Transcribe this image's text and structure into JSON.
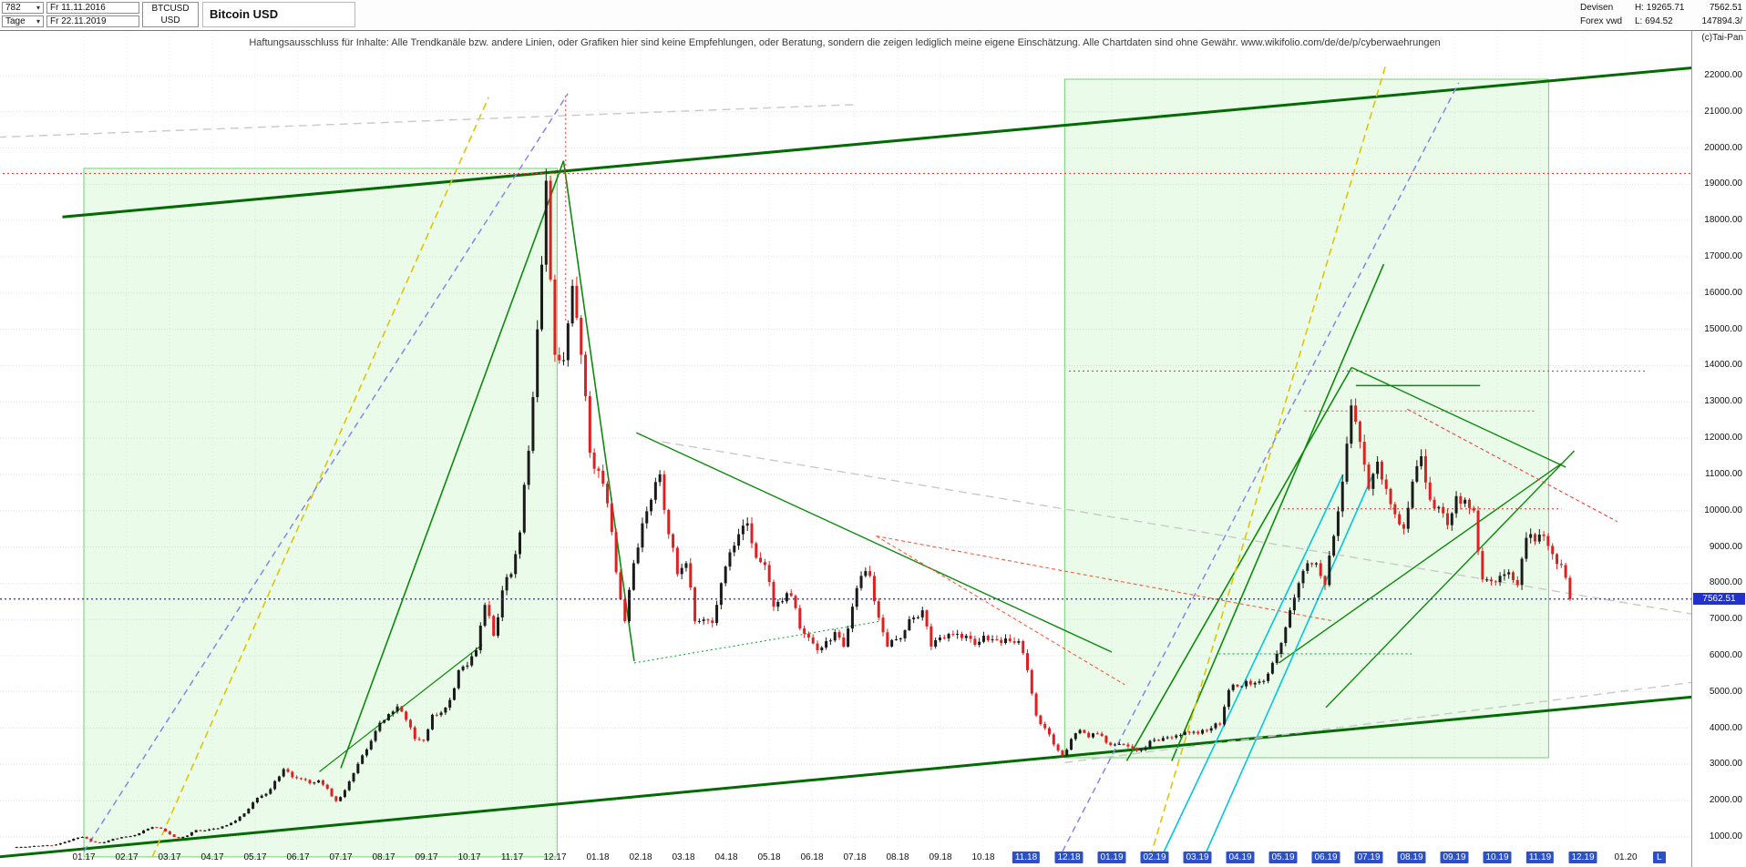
{
  "header": {
    "bars_value": "782",
    "period_value": "Tage",
    "date_from": "Fr 11.11.2016",
    "date_to": "Fr 22.11.2019",
    "symbol": "BTCUSD",
    "symbol_currency": "USD",
    "title": "Bitcoin USD",
    "market": "Devisen",
    "source": "Forex vwd",
    "high_label": "H: 19265.71",
    "low_label": "L: 694.52",
    "last_price": "7562.51",
    "volume": "147894.3/",
    "copyright": "(c)Tai-Pan"
  },
  "disclaimer": "Haftungsausschluss für Inhalte: Alle Trendkanäle bzw. andere Linien, oder Grafiken hier sind keine Empfehlungen, oder Beratung, sondern die zeigen lediglich meine eigene Einschätzung. Alle Chartdaten sind ohne Gewähr.  www.wikifolio.com/de/de/p/cyberwaehrungen",
  "y_axis": {
    "min": 1000,
    "max": 22000,
    "step": 1000,
    "decimals": 2,
    "current_value": 7562.51,
    "current_tag": "7562.51",
    "tag_color": "#2230cc"
  },
  "x_axis": {
    "labels": [
      "01.17",
      "02.17",
      "03.17",
      "04.17",
      "05.17",
      "06.17",
      "07.17",
      "08.17",
      "09.17",
      "10.17",
      "11.17",
      "12.17",
      "01.18",
      "02.18",
      "03.18",
      "04.18",
      "05.18",
      "06.18",
      "07.18",
      "08.18",
      "09.18",
      "10.18",
      "11.18",
      "12.18",
      "01.19",
      "02.19",
      "03.19",
      "04.19",
      "05.19",
      "06.19",
      "07.19",
      "08.19",
      "09.19",
      "10.19",
      "11.19",
      "12.19",
      "01.20"
    ],
    "highlighted_labels": [
      "11.18",
      "12.18",
      "01.19",
      "02.19",
      "03.19",
      "04.19",
      "05.19",
      "06.19",
      "07.19",
      "08.19",
      "09.19",
      "10.19",
      "11.19",
      "12.19"
    ],
    "scale_label": "L"
  },
  "chart_data": {
    "type": "candlestick",
    "title": "Bitcoin USD",
    "instrument": "BTCUSD",
    "timeframe": "Tage",
    "bars": 782,
    "date_range": [
      "Fr 11.11.2016",
      "Fr 22.11.2019"
    ],
    "high": 19265.71,
    "low": 694.52,
    "last": 7562.51,
    "ylim": [
      450,
      22300
    ],
    "up_color": "#1a1a1a",
    "down_color": "#e02020",
    "start_month_offset": -1.67,
    "end_month_offset": 34.7,
    "weekly_closes": [
      715,
      722,
      735,
      748,
      770,
      790,
      860,
      950,
      1000,
      880,
      830,
      900,
      960,
      1010,
      1050,
      1180,
      1270,
      1230,
      1070,
      970,
      1040,
      1190,
      1180,
      1230,
      1290,
      1390,
      1560,
      1780,
      2080,
      2190,
      2540,
      2870,
      2650,
      2600,
      2480,
      2560,
      2330,
      1990,
      2290,
      2760,
      3250,
      3650,
      4150,
      4390,
      4600,
      4230,
      3700,
      3660,
      4370,
      4430,
      4780,
      5600,
      5730,
      6150,
      7400,
      6550,
      7800,
      8250,
      9400,
      11650,
      15000,
      19100,
      14300,
      14150,
      16200,
      14300,
      11600,
      11100,
      10200,
      8300,
      6950,
      8550,
      9650,
      10300,
      11000,
      9350,
      8250,
      8550,
      6950,
      7000,
      6900,
      8000,
      8850,
      9350,
      9650,
      8700,
      8500,
      7350,
      7500,
      7650,
      6750,
      6500,
      6150,
      6400,
      6650,
      6250,
      7350,
      8200,
      8200,
      7050,
      6250,
      6450,
      6700,
      7050,
      7250,
      6250,
      6500,
      6600,
      6600,
      6550,
      6300,
      6550,
      6450,
      6350,
      6400,
      6400,
      5600,
      4350,
      4000,
      3550,
      3250,
      3700,
      3950,
      3750,
      3850,
      3600,
      3550,
      3550,
      3450,
      3400,
      3650,
      3650,
      3750,
      3800,
      3900,
      3900,
      3950,
      4000,
      4100,
      5050,
      5150,
      5300,
      5250,
      5300,
      5800,
      6350,
      7250,
      8000,
      8550,
      8550,
      7950,
      9300,
      10800,
      12900,
      11900,
      10600,
      11350,
      10600,
      9900,
      9500,
      10800,
      11500,
      10300,
      10100,
      9600,
      10400,
      10300,
      10000,
      8100,
      8050,
      8200,
      8300,
      7950,
      9250,
      9150,
      9300,
      8800,
      8500,
      7562
    ],
    "regions": [
      {
        "m1": 0,
        "p1": 19440,
        "m2": 11.05,
        "p2": 450,
        "fill": "rgba(80,220,80,0.12)",
        "stroke": "rgba(30,180,30,0.6)",
        "name": "selection-box-2017"
      },
      {
        "m1": 22.9,
        "p1": 21900,
        "m2": 34.2,
        "p2": 3185,
        "fill": "rgba(80,220,80,0.12)",
        "stroke": "rgba(30,180,30,0.6)",
        "name": "selection-box-2019"
      }
    ],
    "trend_lines": [
      {
        "m1": -0.5,
        "p1": 18100,
        "m2": 37.9,
        "p2": 22250,
        "color": "#046a04",
        "w": 3,
        "name": "upper-channel-line"
      },
      {
        "m1": -2,
        "p1": 450,
        "m2": 37.9,
        "p2": 4900,
        "color": "#046a04",
        "w": 3,
        "name": "lower-channel-line"
      },
      {
        "m1": 6.0,
        "p1": 2900,
        "m2": 11.2,
        "p2": 19650,
        "color": "#0c8a0c",
        "w": 1.6,
        "name": "rally-2017-trendline"
      },
      {
        "m1": 11.2,
        "p1": 19650,
        "m2": 12.85,
        "p2": 5850,
        "color": "#0c8a0c",
        "w": 1.6,
        "name": "crash-2018-trendline"
      },
      {
        "m1": 12.9,
        "p1": 12150,
        "m2": 24.0,
        "p2": 6100,
        "color": "#0c8a0c",
        "w": 1.4,
        "name": "descending-2018-trendline"
      },
      {
        "m1": 24.35,
        "p1": 3100,
        "m2": 29.6,
        "p2": 13950,
        "color": "#0c8a0c",
        "w": 1.6,
        "name": "rally-2019-trendline"
      },
      {
        "m1": 25.4,
        "p1": 3100,
        "m2": 30.35,
        "p2": 16800,
        "color": "#0c8a0c",
        "w": 1.6,
        "name": "rally-2019-trendline-2"
      },
      {
        "m1": 29.6,
        "p1": 13950,
        "m2": 34.6,
        "p2": 11200,
        "color": "#0c8a0c",
        "w": 1.4,
        "name": "post-peak-2019-trendline"
      },
      {
        "m1": 29.0,
        "p1": 4570,
        "m2": 34.8,
        "p2": 11650,
        "color": "#0c8a0c",
        "w": 1.4,
        "name": "rising-support-2019"
      },
      {
        "m1": 27.9,
        "p1": 5800,
        "m2": 34.5,
        "p2": 11300,
        "color": "#0c8a0c",
        "w": 1.4,
        "name": "rising-support-2019-2"
      },
      {
        "m1": 29.7,
        "p1": 13450,
        "m2": 32.6,
        "p2": 13450,
        "color": "#0c8a0c",
        "w": 1.4,
        "name": "resistance-13450"
      },
      {
        "m1": 5.5,
        "p1": 2800,
        "m2": 9.3,
        "p2": 6300,
        "color": "#0c8a0c",
        "w": 1.2,
        "name": "minor-support-2017"
      },
      {
        "m1": 25.1,
        "p1": 300,
        "m2": 29.4,
        "p2": 11000,
        "color": "#00c8d8",
        "w": 1.6,
        "name": "cyan-fan-line-1"
      },
      {
        "m1": 26.1,
        "p1": 300,
        "m2": 30.1,
        "p2": 11000,
        "color": "#00c8d8",
        "w": 1.6,
        "name": "cyan-fan-line-2"
      },
      {
        "m1": 1.6,
        "p1": 450,
        "m2": 9.45,
        "p2": 21400,
        "color": "#ddc700",
        "w": 1.6,
        "dash": "8 5",
        "name": "yellow-trendline-2017"
      },
      {
        "m1": 24.9,
        "p1": 450,
        "m2": 30.4,
        "p2": 22300,
        "color": "#ddc700",
        "w": 1.6,
        "dash": "8 5",
        "name": "yellow-trendline-2019"
      },
      {
        "m1": 0.0,
        "p1": 600,
        "m2": 11.3,
        "p2": 21500,
        "color": "#8585ea",
        "w": 1.5,
        "dash": "7 5",
        "name": "blue-dashed-2017"
      },
      {
        "m1": 22.85,
        "p1": 600,
        "m2": 32.1,
        "p2": 21800,
        "color": "#8585ea",
        "w": 1.5,
        "dash": "7 5",
        "name": "blue-dashed-2019"
      },
      {
        "m1": -2,
        "p1": 20300,
        "m2": 18,
        "p2": 21200,
        "color": "#c9c9c9",
        "w": 1.4,
        "dash": "9 6",
        "name": "gray-dashed-top"
      },
      {
        "m1": 13.5,
        "p1": 11900,
        "m2": 37.8,
        "p2": 7100,
        "color": "#c9c9c9",
        "w": 1.4,
        "dash": "9 6",
        "name": "gray-dashed-mid"
      },
      {
        "m1": 22.9,
        "p1": 3050,
        "m2": 37.8,
        "p2": 5300,
        "color": "#c9c9c9",
        "w": 1.4,
        "dash": "9 6",
        "name": "gray-dashed-bottom"
      },
      {
        "m1": -2,
        "p1": 19300,
        "m2": 37.9,
        "p2": 19300,
        "color": "#ef4040",
        "w": 1.1,
        "dash": "2 3",
        "name": "resistance-19300"
      },
      {
        "m1": 23.0,
        "p1": 13850,
        "m2": 36.5,
        "p2": 13850,
        "color": "#ef4040",
        "w": 1.1,
        "dash": "2 3",
        "name": "resistance-13850"
      },
      {
        "m1": 28.5,
        "p1": 12750,
        "m2": 33.9,
        "p2": 12750,
        "color": "#ef4040",
        "w": 1.1,
        "dash": "2 3",
        "name": "resistance-12750"
      },
      {
        "m1": 28.0,
        "p1": 10050,
        "m2": 34.5,
        "p2": 10050,
        "color": "#ef4040",
        "w": 1.1,
        "dash": "2 3",
        "name": "resistance-10050"
      },
      {
        "m1": 18.5,
        "p1": 9300,
        "m2": 29.2,
        "p2": 6950,
        "color": "#ef6040",
        "w": 1.1,
        "dash": "4 3",
        "name": "red-dashed-decline-1"
      },
      {
        "m1": 18.5,
        "p1": 9300,
        "m2": 24.3,
        "p2": 5200,
        "color": "#ef6040",
        "w": 1.1,
        "dash": "4 3",
        "name": "red-dashed-decline-2"
      },
      {
        "m1": 30.9,
        "p1": 12800,
        "m2": 35.8,
        "p2": 9700,
        "color": "#ef4040",
        "w": 1.1,
        "dash": "4 3",
        "name": "red-dashed-decline-3"
      },
      {
        "m1": 11.25,
        "p1": 21450,
        "m2": 11.25,
        "p2": 15200,
        "color": "#ef4040",
        "w": 1.1,
        "dash": "2 3",
        "name": "peak-vertical-marker"
      },
      {
        "m1": 26.5,
        "p1": 6050,
        "m2": 31.0,
        "p2": 6050,
        "color": "#10a848",
        "w": 1.1,
        "dash": "2 3",
        "name": "green-dotted-6050"
      },
      {
        "m1": 12.85,
        "p1": 5800,
        "m2": 18.6,
        "p2": 6950,
        "color": "#10a848",
        "w": 1.1,
        "dash": "2 3",
        "name": "green-dotted-rise-2018"
      }
    ],
    "last_price_line": {
      "value": 7562.51,
      "color": "#2424e0",
      "dash": "2 3"
    }
  }
}
